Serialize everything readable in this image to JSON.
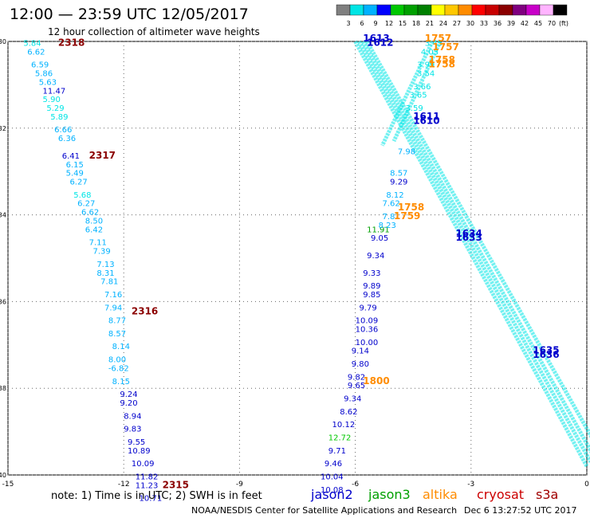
{
  "header": {
    "title": "12:00 — 23:59 UTC 12/05/2017",
    "subtitle": "12 hour collection of altimeter wave heights"
  },
  "footer": {
    "note": "note: 1) Time is in UTC; 2) SWH is in feet",
    "credit": "NOAA/NESDIS Center for Satellite Applications and Research",
    "timestamp": "Dec  6 13:27:52 UTC 2017"
  },
  "legend": {
    "unit": "(ft)",
    "bins": [
      {
        "label": "3",
        "color": "#808080"
      },
      {
        "label": "6",
        "color": "#00e5e5"
      },
      {
        "label": "9",
        "color": "#00b2ff"
      },
      {
        "label": "12",
        "color": "#0000ff"
      },
      {
        "label": "15",
        "color": "#00c800"
      },
      {
        "label": "18",
        "color": "#00a000"
      },
      {
        "label": "21",
        "color": "#008000"
      },
      {
        "label": "24",
        "color": "#ffff00"
      },
      {
        "label": "27",
        "color": "#ffc800"
      },
      {
        "label": "30",
        "color": "#ff8c00"
      },
      {
        "label": "33",
        "color": "#ff0000"
      },
      {
        "label": "36",
        "color": "#c80000"
      },
      {
        "label": "39",
        "color": "#8b0000"
      },
      {
        "label": "42",
        "color": "#800080"
      },
      {
        "label": "45",
        "color": "#c800c8"
      },
      {
        "label": "70",
        "color": "#ffb4ff"
      },
      {
        "label": "",
        "color": "#000000"
      }
    ]
  },
  "satellites": [
    {
      "name": "jason2",
      "color": "#0000cc"
    },
    {
      "name": "jason3",
      "color": "#00a000"
    },
    {
      "name": "altika",
      "color": "#ff8c00"
    },
    {
      "name": "cryosat",
      "color": "#cc0000"
    },
    {
      "name": "s3a",
      "color": "#a00000"
    }
  ],
  "chart_data": {
    "type": "scatter",
    "xlim": [
      -15,
      0
    ],
    "ylim": [
      -40,
      -30
    ],
    "xticks": [
      "-15",
      "-12",
      "-9",
      "-6",
      "-3",
      "0"
    ],
    "yticks": [
      "-30",
      "-32",
      "-34",
      "-36",
      "-38",
      "-40"
    ],
    "grid": true,
    "points": [
      {
        "x": -14.6,
        "y": -30.1,
        "v": "5.84",
        "c": "#00e5e5"
      },
      {
        "x": -14.5,
        "y": -30.3,
        "v": "6.62",
        "c": "#00b2ff"
      },
      {
        "x": -14.4,
        "y": -30.6,
        "v": "6.59",
        "c": "#00b2ff"
      },
      {
        "x": -14.3,
        "y": -30.8,
        "v": "5.86",
        "c": "#00b2ff"
      },
      {
        "x": -14.2,
        "y": -31.0,
        "v": "5.63",
        "c": "#00b2ff"
      },
      {
        "x": -14.1,
        "y": -31.2,
        "v": "11.47",
        "c": "#0000cc"
      },
      {
        "x": -14.1,
        "y": -31.4,
        "v": "5.90",
        "c": "#00e5e5"
      },
      {
        "x": -14.0,
        "y": -31.6,
        "v": "5.29",
        "c": "#00e5e5"
      },
      {
        "x": -13.9,
        "y": -31.8,
        "v": "5.89",
        "c": "#00e5e5"
      },
      {
        "x": -13.8,
        "y": -32.1,
        "v": "6.66",
        "c": "#00b2ff"
      },
      {
        "x": -13.7,
        "y": -32.3,
        "v": "6.36",
        "c": "#00b2ff"
      },
      {
        "x": -13.6,
        "y": -32.7,
        "v": "6.41",
        "c": "#0000cc"
      },
      {
        "x": -13.5,
        "y": -32.9,
        "v": "6.15",
        "c": "#00b2ff"
      },
      {
        "x": -13.5,
        "y": -33.1,
        "v": "5.49",
        "c": "#00b2ff"
      },
      {
        "x": -13.4,
        "y": -33.3,
        "v": "6.27",
        "c": "#00b2ff"
      },
      {
        "x": -13.3,
        "y": -33.6,
        "v": "5.68",
        "c": "#00e5e5"
      },
      {
        "x": -13.2,
        "y": -33.8,
        "v": "6.27",
        "c": "#00b2ff"
      },
      {
        "x": -13.1,
        "y": -34.0,
        "v": "6.62",
        "c": "#00b2ff"
      },
      {
        "x": -13.0,
        "y": -34.2,
        "v": "8.50",
        "c": "#00b2ff"
      },
      {
        "x": -13.0,
        "y": -34.4,
        "v": "6.42",
        "c": "#00b2ff"
      },
      {
        "x": -12.9,
        "y": -34.7,
        "v": "7.11",
        "c": "#00b2ff"
      },
      {
        "x": -12.8,
        "y": -34.9,
        "v": "7.39",
        "c": "#00b2ff"
      },
      {
        "x": -12.7,
        "y": -35.2,
        "v": "7.13",
        "c": "#00b2ff"
      },
      {
        "x": -12.7,
        "y": -35.4,
        "v": "8.31",
        "c": "#00b2ff"
      },
      {
        "x": -12.6,
        "y": -35.6,
        "v": "7.81",
        "c": "#00b2ff"
      },
      {
        "x": -12.5,
        "y": -35.9,
        "v": "7.16",
        "c": "#00b2ff"
      },
      {
        "x": -12.5,
        "y": -36.2,
        "v": "7.94",
        "c": "#00b2ff"
      },
      {
        "x": -12.4,
        "y": -36.5,
        "v": "8.77",
        "c": "#00b2ff"
      },
      {
        "x": -12.4,
        "y": -36.8,
        "v": "8.57",
        "c": "#00b2ff"
      },
      {
        "x": -12.3,
        "y": -37.1,
        "v": "8.14",
        "c": "#00b2ff"
      },
      {
        "x": -12.4,
        "y": -37.4,
        "v": "8.00",
        "c": "#00b2ff"
      },
      {
        "x": -12.4,
        "y": -37.6,
        "v": "-6.82",
        "c": "#00b2ff"
      },
      {
        "x": -12.3,
        "y": -37.9,
        "v": "8.15",
        "c": "#00b2ff"
      },
      {
        "x": -12.1,
        "y": -38.2,
        "v": "9.24",
        "c": "#0000cc"
      },
      {
        "x": -12.1,
        "y": -38.4,
        "v": "9.20",
        "c": "#0000cc"
      },
      {
        "x": -12.0,
        "y": -38.7,
        "v": "8.94",
        "c": "#0000cc"
      },
      {
        "x": -12.0,
        "y": -39.0,
        "v": "9.83",
        "c": "#0000cc"
      },
      {
        "x": -11.9,
        "y": -39.3,
        "v": "9.55",
        "c": "#0000cc"
      },
      {
        "x": -11.9,
        "y": -39.5,
        "v": "10.89",
        "c": "#0000cc"
      },
      {
        "x": -11.8,
        "y": -39.8,
        "v": "10.09",
        "c": "#0000cc"
      },
      {
        "x": -11.7,
        "y": -40.1,
        "v": "11.82",
        "c": "#0000cc"
      },
      {
        "x": -11.7,
        "y": -40.3,
        "v": "11.23",
        "c": "#0000cc"
      },
      {
        "x": -11.6,
        "y": -40.6,
        "v": "10.71",
        "c": "#0000cc"
      },
      {
        "x": -5.7,
        "y": -34.4,
        "v": "11.91",
        "c": "#00a000"
      },
      {
        "x": -5.6,
        "y": -34.6,
        "v": "9.05",
        "c": "#0000cc"
      },
      {
        "x": -5.7,
        "y": -35.0,
        "v": "9.34",
        "c": "#0000cc"
      },
      {
        "x": -5.8,
        "y": -35.4,
        "v": "9.33",
        "c": "#0000cc"
      },
      {
        "x": -5.8,
        "y": -35.7,
        "v": "9.89",
        "c": "#0000cc"
      },
      {
        "x": -5.8,
        "y": -35.9,
        "v": "9.85",
        "c": "#0000cc"
      },
      {
        "x": -5.9,
        "y": -36.2,
        "v": "9.79",
        "c": "#0000cc"
      },
      {
        "x": -6.0,
        "y": -36.5,
        "v": "10.09",
        "c": "#0000cc"
      },
      {
        "x": -6.0,
        "y": -36.7,
        "v": "10.36",
        "c": "#0000cc"
      },
      {
        "x": -6.0,
        "y": -37.0,
        "v": "10.00",
        "c": "#0000cc"
      },
      {
        "x": -6.1,
        "y": -37.2,
        "v": "9.14",
        "c": "#0000cc"
      },
      {
        "x": -6.1,
        "y": -37.5,
        "v": "9.80",
        "c": "#0000cc"
      },
      {
        "x": -6.2,
        "y": -37.8,
        "v": "9.82",
        "c": "#0000cc"
      },
      {
        "x": -6.2,
        "y": -38.0,
        "v": "9.65",
        "c": "#0000cc"
      },
      {
        "x": -6.3,
        "y": -38.3,
        "v": "9.34",
        "c": "#0000cc"
      },
      {
        "x": -6.4,
        "y": -38.6,
        "v": "8.62",
        "c": "#0000cc"
      },
      {
        "x": -6.6,
        "y": -38.9,
        "v": "10.12",
        "c": "#0000cc"
      },
      {
        "x": -6.7,
        "y": -39.2,
        "v": "12.72",
        "c": "#00c800"
      },
      {
        "x": -6.7,
        "y": -39.5,
        "v": "9.71",
        "c": "#0000cc"
      },
      {
        "x": -6.8,
        "y": -39.8,
        "v": "9.46",
        "c": "#0000cc"
      },
      {
        "x": -6.9,
        "y": -40.1,
        "v": "10.04",
        "c": "#0000cc"
      },
      {
        "x": -6.9,
        "y": -40.4,
        "v": "10.08",
        "c": "#0000cc"
      },
      {
        "x": -4.2,
        "y": -30.1,
        "v": "3.45",
        "c": "#00e5e5"
      },
      {
        "x": -4.3,
        "y": -30.3,
        "v": "4.03",
        "c": "#00e5e5"
      },
      {
        "x": -4.4,
        "y": -30.6,
        "v": "3.99",
        "c": "#00e5e5"
      },
      {
        "x": -4.4,
        "y": -30.8,
        "v": "3.54",
        "c": "#00e5e5"
      },
      {
        "x": -4.5,
        "y": -31.1,
        "v": "3.66",
        "c": "#00e5e5"
      },
      {
        "x": -4.6,
        "y": -31.3,
        "v": "3.65",
        "c": "#00e5e5"
      },
      {
        "x": -4.7,
        "y": -31.6,
        "v": "3.59",
        "c": "#00e5e5"
      },
      {
        "x": -4.9,
        "y": -32.6,
        "v": "7.98",
        "c": "#00b2ff"
      },
      {
        "x": -5.1,
        "y": -33.1,
        "v": "8.57",
        "c": "#00b2ff"
      },
      {
        "x": -5.1,
        "y": -33.3,
        "v": "9.29",
        "c": "#0000cc"
      },
      {
        "x": -5.2,
        "y": -33.6,
        "v": "8.12",
        "c": "#00b2ff"
      },
      {
        "x": -5.3,
        "y": -33.8,
        "v": "7.62",
        "c": "#00b2ff"
      },
      {
        "x": -5.3,
        "y": -34.1,
        "v": "7.81",
        "c": "#00b2ff"
      },
      {
        "x": -5.4,
        "y": -34.3,
        "v": "8.23",
        "c": "#00b2ff"
      }
    ],
    "tracks": [
      {
        "x1": -6.0,
        "y1": -30.0,
        "x2": 0.0,
        "y2": -39.8,
        "c": "#00e5e5"
      },
      {
        "x1": -5.9,
        "y1": -30.0,
        "x2": 0.1,
        "y2": -39.7,
        "c": "#00e5e5"
      },
      {
        "x1": -5.7,
        "y1": -30.0,
        "x2": 0.3,
        "y2": -39.4,
        "c": "#00e5e5"
      },
      {
        "x1": -5.8,
        "y1": -30.0,
        "x2": 0.2,
        "y2": -39.6,
        "c": "#00e5e5"
      },
      {
        "x1": -3.8,
        "y1": -30.0,
        "x2": -5.0,
        "y2": -32.3,
        "c": "#00e5e5"
      },
      {
        "x1": -4.0,
        "y1": -30.0,
        "x2": -5.3,
        "y2": -32.4,
        "c": "#00e5e5"
      }
    ],
    "labels": [
      {
        "x": -13.7,
        "y": -30.1,
        "t": "2318",
        "c": "#8b0000"
      },
      {
        "x": -12.9,
        "y": -32.7,
        "t": "2317",
        "c": "#8b0000"
      },
      {
        "x": -11.8,
        "y": -36.3,
        "t": "2316",
        "c": "#8b0000"
      },
      {
        "x": -11.0,
        "y": -40.3,
        "t": "2315",
        "c": "#8b0000"
      },
      {
        "x": -5.8,
        "y": -30.0,
        "t": "1613",
        "c": "#0000cc"
      },
      {
        "x": -5.7,
        "y": -30.1,
        "t": "1612",
        "c": "#0000cc"
      },
      {
        "x": -4.5,
        "y": -31.8,
        "t": "1611",
        "c": "#0000cc"
      },
      {
        "x": -4.5,
        "y": -31.9,
        "t": "1610",
        "c": "#0000cc"
      },
      {
        "x": -3.4,
        "y": -34.5,
        "t": "1634",
        "c": "#0000cc"
      },
      {
        "x": -3.4,
        "y": -34.6,
        "t": "1633",
        "c": "#0000cc"
      },
      {
        "x": -1.4,
        "y": -37.2,
        "t": "1635",
        "c": "#0000cc"
      },
      {
        "x": -1.4,
        "y": -37.3,
        "t": "1636",
        "c": "#0000cc"
      },
      {
        "x": -4.2,
        "y": -30.0,
        "t": "1757",
        "c": "#ff8c00"
      },
      {
        "x": -4.0,
        "y": -30.2,
        "t": "1757",
        "c": "#ff8c00"
      },
      {
        "x": -4.1,
        "y": -30.5,
        "t": "1758",
        "c": "#ff8c00"
      },
      {
        "x": -4.1,
        "y": -30.6,
        "t": "1758",
        "c": "#ff8c00"
      },
      {
        "x": -4.9,
        "y": -33.9,
        "t": "1758",
        "c": "#ff8c00"
      },
      {
        "x": -5.0,
        "y": -34.1,
        "t": "1759",
        "c": "#ff8c00"
      },
      {
        "x": -5.8,
        "y": -37.9,
        "t": "1800",
        "c": "#ff8c00"
      }
    ]
  }
}
